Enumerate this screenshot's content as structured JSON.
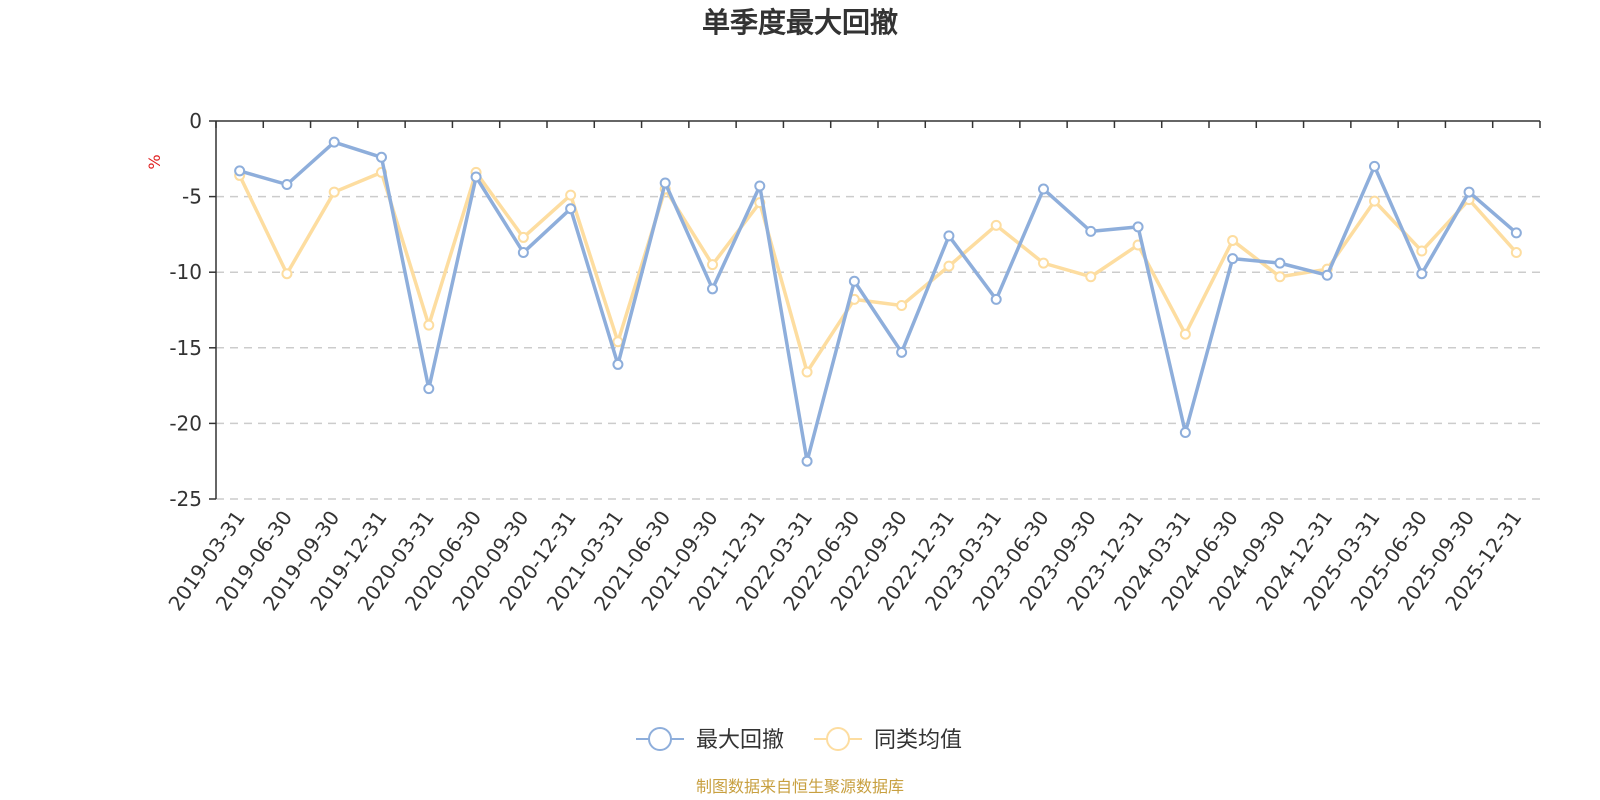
{
  "chart_data": {
    "type": "line",
    "title": "单季度最大回撤",
    "ylabel": "%",
    "ylim": [
      -25,
      0
    ],
    "yticks": [
      0,
      -5,
      -10,
      -15,
      -20,
      -25
    ],
    "grid": true,
    "legend_position": "bottom-center",
    "categories": [
      "2019-03-31",
      "2019-06-30",
      "2019-09-30",
      "2019-12-31",
      "2020-03-31",
      "2020-06-30",
      "2020-09-30",
      "2020-12-31",
      "2021-03-31",
      "2021-06-30",
      "2021-09-30",
      "2021-12-31",
      "2022-03-31",
      "2022-06-30",
      "2022-09-30",
      "2022-12-31",
      "2023-03-31",
      "2023-06-30",
      "2023-09-30",
      "2023-12-31",
      "2024-03-31",
      "2024-06-30",
      "2024-09-30",
      "2024-12-31",
      "2025-03-31",
      "2025-06-30",
      "2025-09-30",
      "2025-12-31"
    ],
    "series": [
      {
        "name": "最大回撤",
        "color": "#8eaedb",
        "values": [
          -3.3,
          -4.2,
          -1.4,
          -2.4,
          -17.7,
          -3.7,
          -8.7,
          -5.8,
          -16.1,
          -4.1,
          -11.1,
          -4.3,
          -22.5,
          -10.6,
          -15.3,
          -7.6,
          -11.8,
          -4.5,
          -7.3,
          -7.0,
          -20.6,
          -9.1,
          -9.4,
          -10.2,
          -3.0,
          -10.1,
          -4.7,
          -7.4
        ]
      },
      {
        "name": "同类均值",
        "color": "#fddda0",
        "values": [
          -3.6,
          -10.1,
          -4.7,
          -3.4,
          -13.5,
          -3.4,
          -7.7,
          -4.9,
          -14.6,
          -4.5,
          -9.5,
          -5.4,
          -16.6,
          -11.8,
          -12.2,
          -9.6,
          -6.9,
          -9.4,
          -10.3,
          -8.2,
          -14.1,
          -7.9,
          -10.3,
          -9.8,
          -5.3,
          -8.6,
          -5.2,
          -8.7
        ]
      }
    ],
    "source_note": "制图数据来自恒生聚源数据库"
  }
}
